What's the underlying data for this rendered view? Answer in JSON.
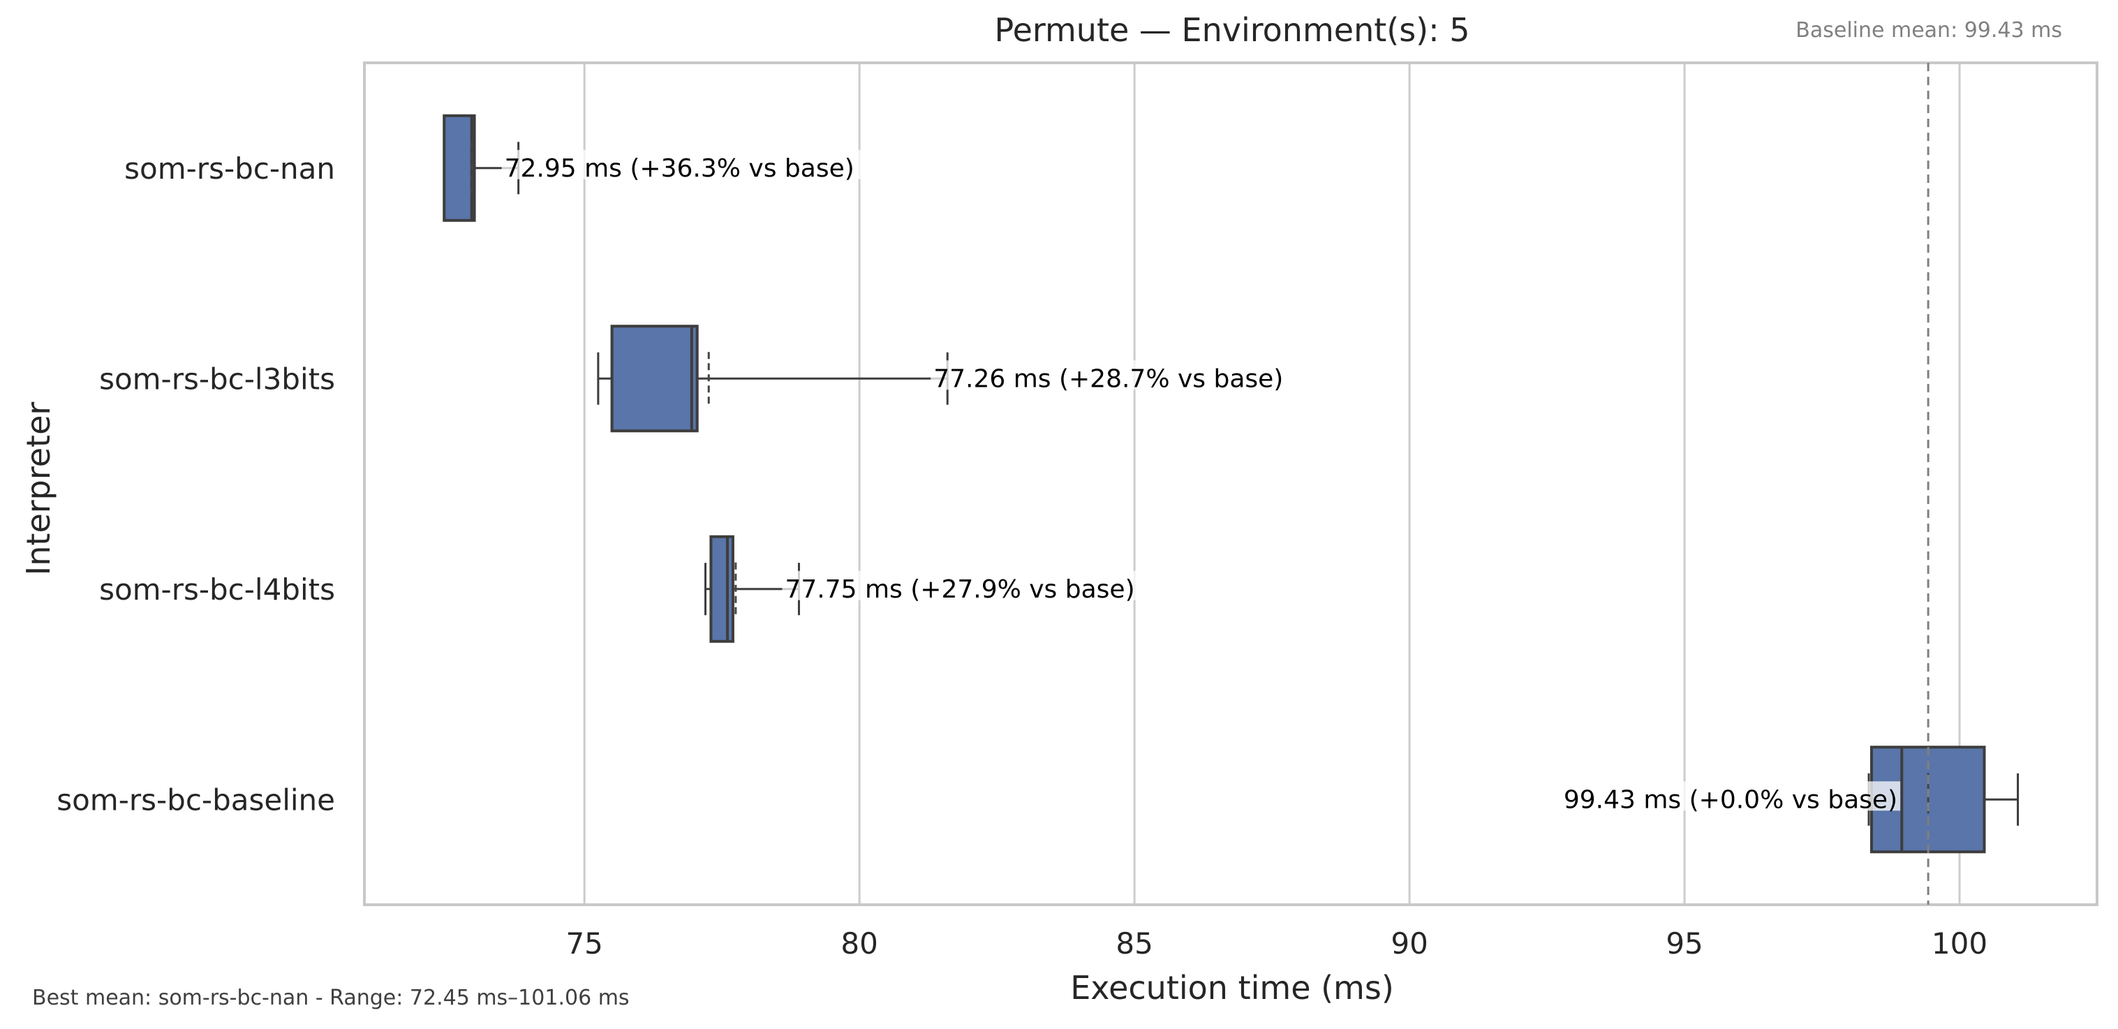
{
  "chart_data": {
    "type": "box",
    "orientation": "horizontal",
    "title": "Permute — Environment(s): 5",
    "xlabel": "Execution time (ms)",
    "ylabel": "Interpreter",
    "xlim": [
      71.0,
      102.5
    ],
    "xticks": [
      75,
      80,
      85,
      90,
      95,
      100
    ],
    "grid": "vertical",
    "box_color": "#5975a9",
    "categories": [
      "som-rs-bc-nan",
      "som-rs-bc-l3bits",
      "som-rs-bc-l4bits",
      "som-rs-bc-baseline"
    ],
    "boxes": [
      {
        "name": "som-rs-bc-nan",
        "whislo": 72.45,
        "q1": 72.45,
        "med": 72.95,
        "q3": 73.0,
        "whishi": 73.8,
        "mean": 72.95,
        "label": "72.95 ms  (+36.3% vs base)"
      },
      {
        "name": "som-rs-bc-l3bits",
        "whislo": 75.25,
        "q1": 75.5,
        "med": 76.95,
        "q3": 77.05,
        "whishi": 81.6,
        "mean": 77.26,
        "label": "77.26 ms  (+28.7% vs base)"
      },
      {
        "name": "som-rs-bc-l4bits",
        "whislo": 77.2,
        "q1": 77.3,
        "med": 77.6,
        "q3": 77.7,
        "whishi": 78.9,
        "mean": 77.75,
        "label": "77.75 ms  (+27.9% vs base)"
      },
      {
        "name": "som-rs-bc-baseline",
        "whislo": 98.35,
        "q1": 98.4,
        "med": 98.95,
        "q3": 100.45,
        "whishi": 101.06,
        "mean": 99.43,
        "label": "99.43 ms  (+0.0% vs base)"
      }
    ],
    "baseline_mean": 99.43,
    "baseline_note": "Baseline mean: 99.43 ms",
    "footer": "Best mean: som-rs-bc-nan - Range: 72.45 ms–101.06 ms"
  }
}
